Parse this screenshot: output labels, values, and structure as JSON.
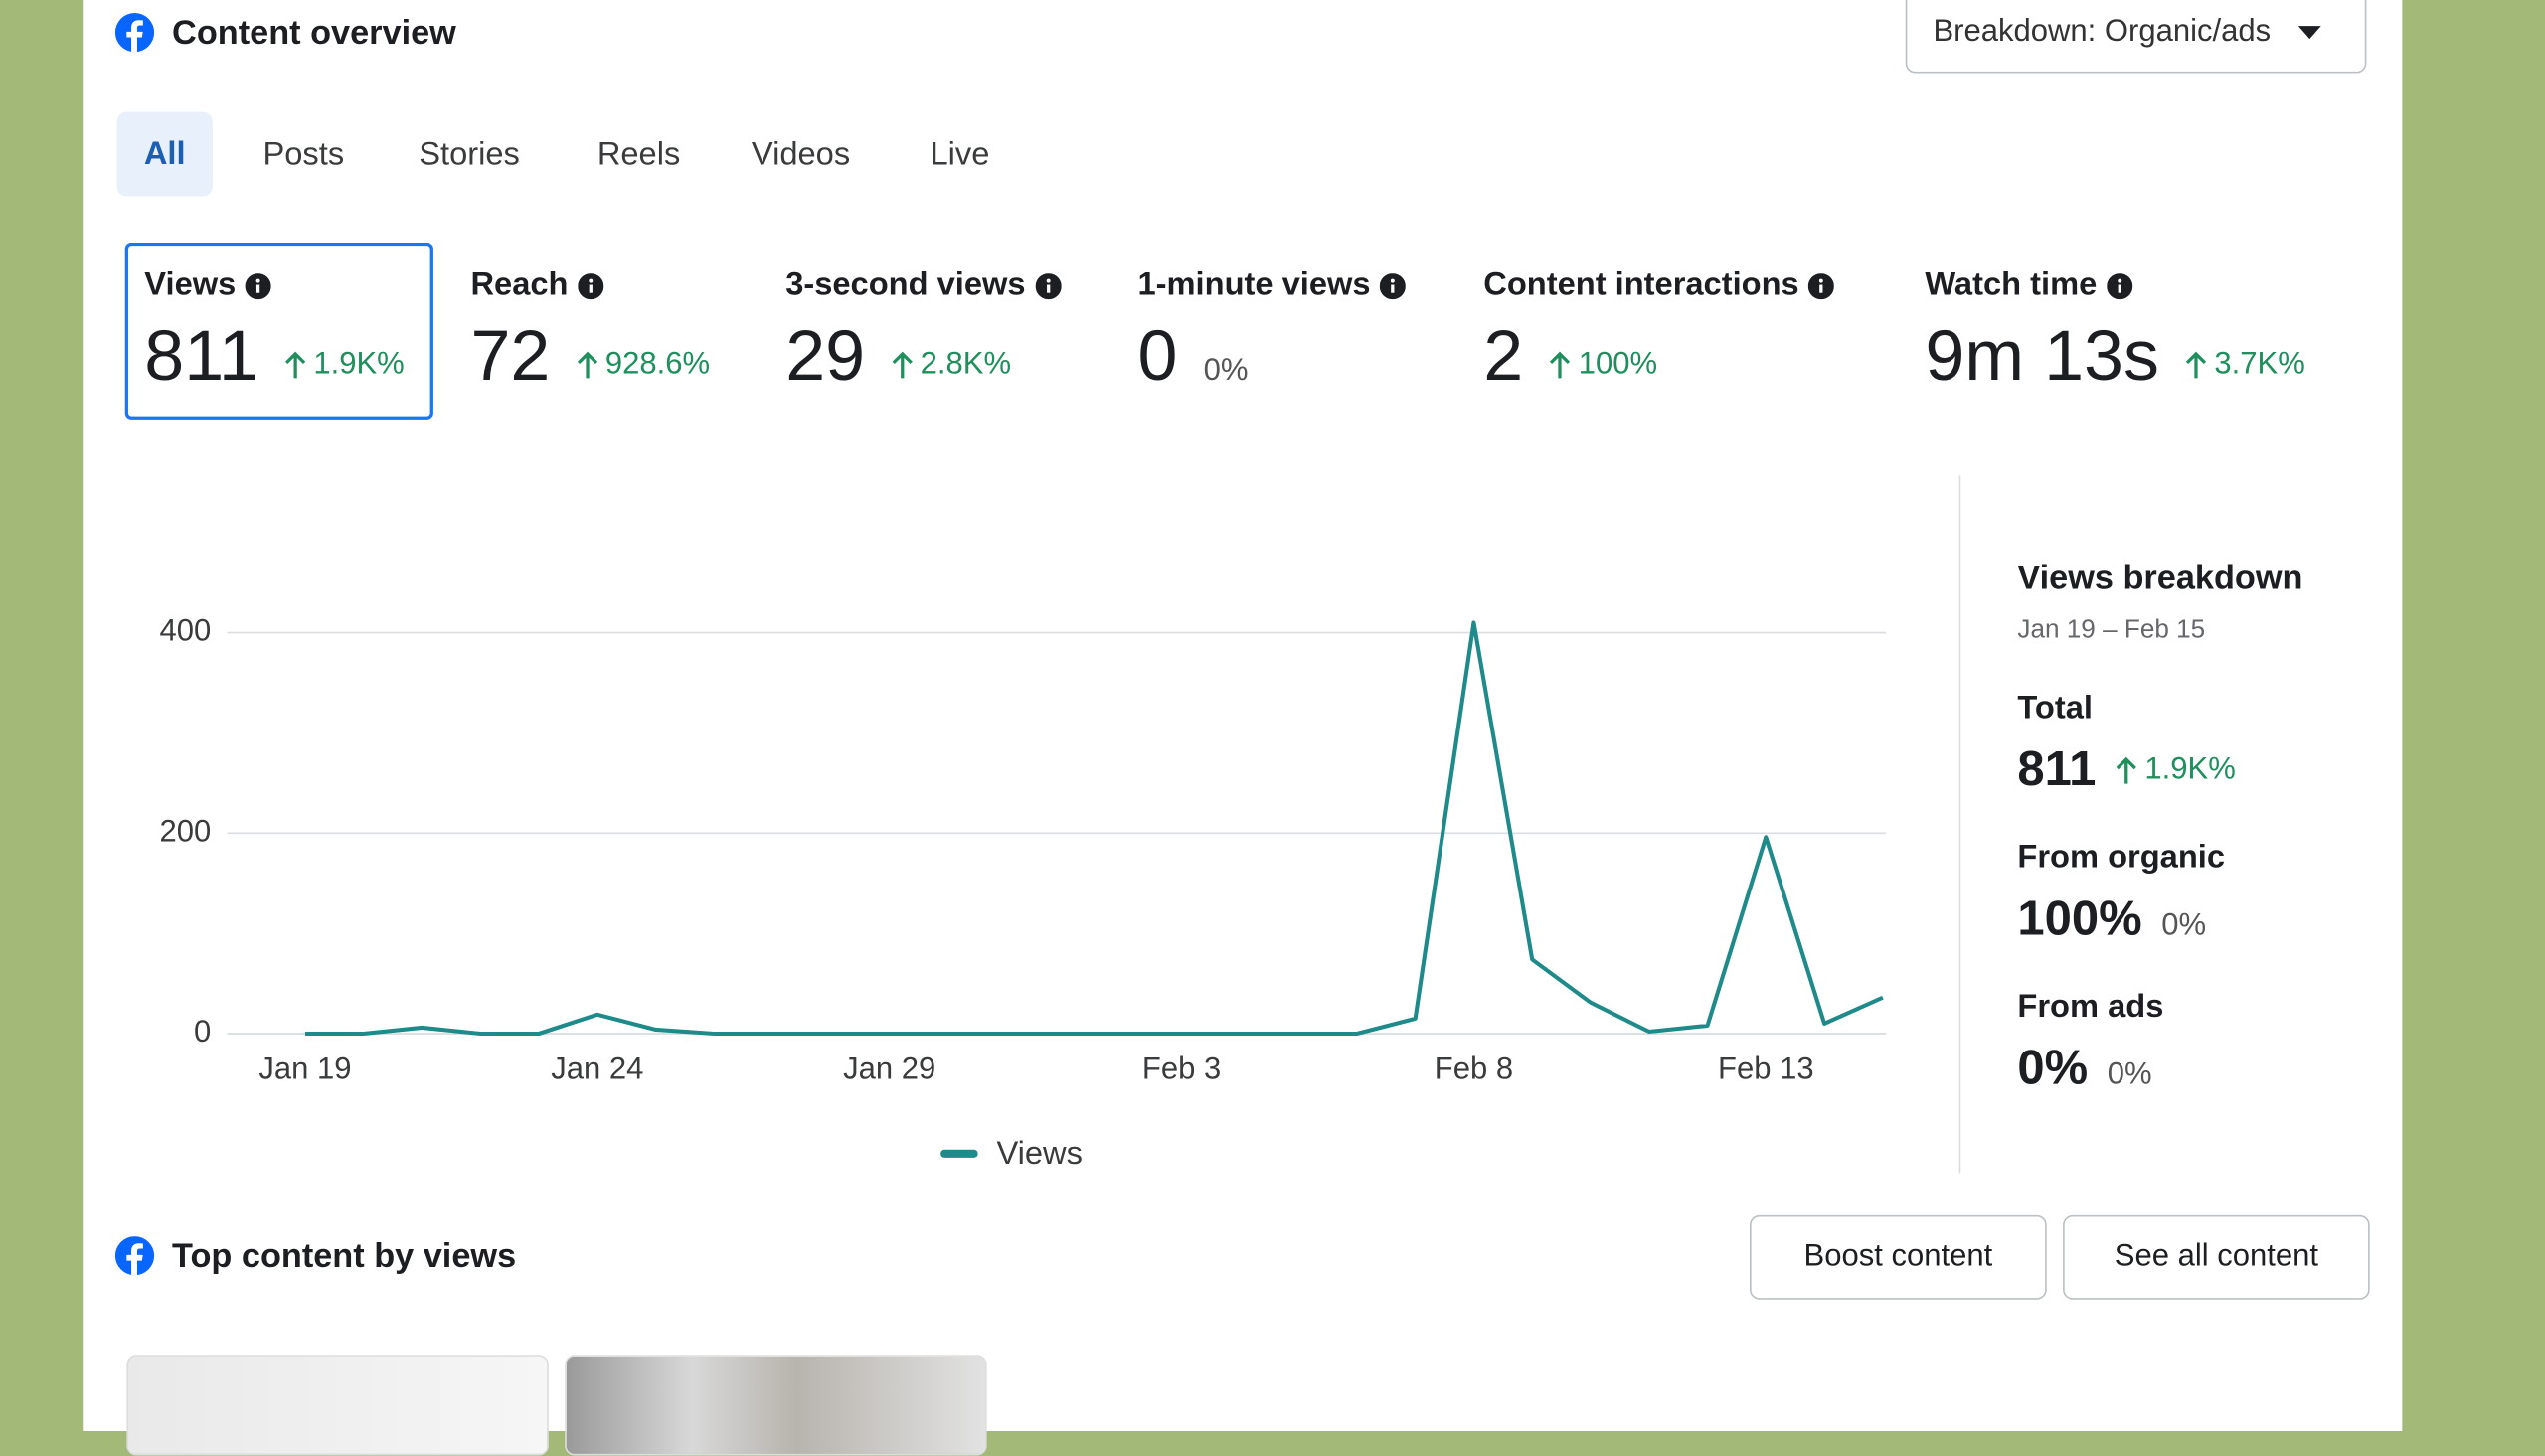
{
  "header": {
    "title": "Content overview",
    "breakdown_button": "Breakdown: Organic/ads"
  },
  "tabs": [
    "All",
    "Posts",
    "Stories",
    "Reels",
    "Videos",
    "Live"
  ],
  "selected_tab": 0,
  "metrics": [
    {
      "label": "Views",
      "value": "811",
      "change": "1.9K%",
      "up": true
    },
    {
      "label": "Reach",
      "value": "72",
      "change": "928.6%",
      "up": true
    },
    {
      "label": "3-second views",
      "value": "29",
      "change": "2.8K%",
      "up": true
    },
    {
      "label": "1-minute views",
      "value": "0",
      "change": "0%",
      "up": false
    },
    {
      "label": "Content interactions",
      "value": "2",
      "change": "100%",
      "up": true
    },
    {
      "label": "Watch time",
      "value": "9m 13s",
      "change": "3.7K%",
      "up": true
    }
  ],
  "selected_metric": 0,
  "chart_data": {
    "type": "line",
    "categories": [
      "Jan 19",
      null,
      null,
      null,
      null,
      "Jan 24",
      null,
      null,
      null,
      null,
      "Jan 29",
      null,
      null,
      null,
      null,
      "Feb 3",
      null,
      null,
      null,
      null,
      "Feb 8",
      null,
      null,
      null,
      null,
      "Feb 13",
      null,
      null
    ],
    "series": [
      {
        "name": "Views",
        "color": "#1f8a8a",
        "values": [
          0,
          0,
          6,
          0,
          0,
          19,
          4,
          0,
          0,
          0,
          0,
          0,
          0,
          0,
          0,
          0,
          0,
          0,
          0,
          15,
          410,
          74,
          31,
          2,
          8,
          196,
          10,
          36
        ]
      }
    ],
    "ylim": [
      0,
      450
    ],
    "yticks": [
      0,
      200,
      400
    ],
    "grid": true
  },
  "breakdown": {
    "title": "Views breakdown",
    "date_range": "Jan 19 – Feb 15",
    "items": [
      {
        "label": "Total",
        "value": "811",
        "change": "1.9K%",
        "up": true
      },
      {
        "label": "From organic",
        "value": "100%",
        "change": "0%",
        "up": false
      },
      {
        "label": "From ads",
        "value": "0%",
        "change": "0%",
        "up": false
      }
    ]
  },
  "top_content": {
    "title": "Top content by views",
    "buttons": [
      "Boost content",
      "See all content"
    ]
  }
}
